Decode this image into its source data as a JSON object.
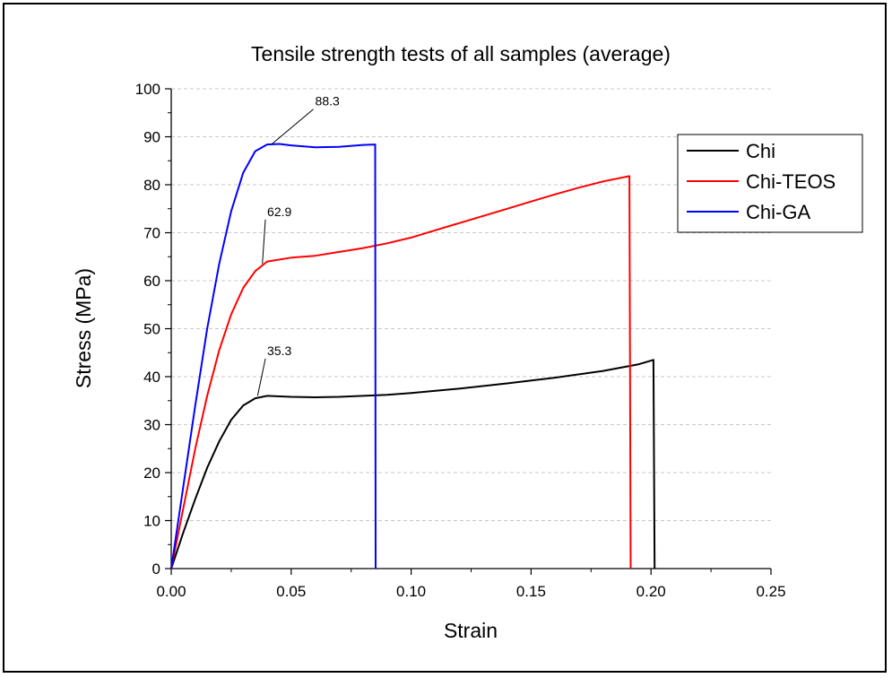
{
  "chart_data": {
    "type": "line",
    "title": "Tensile strength tests of all samples (average)",
    "xlabel": "Strain",
    "ylabel": "Stress (MPa)",
    "xlim": [
      0,
      0.25
    ],
    "ylim": [
      0,
      100
    ],
    "x_ticks": [
      "0.00",
      "0.05",
      "0.10",
      "0.15",
      "0.20",
      "0.25"
    ],
    "x_tick_values": [
      0,
      0.05,
      0.1,
      0.15,
      0.2,
      0.25
    ],
    "y_ticks": [
      "0",
      "10",
      "20",
      "30",
      "40",
      "50",
      "60",
      "70",
      "80",
      "90",
      "100"
    ],
    "y_tick_values": [
      0,
      10,
      20,
      30,
      40,
      50,
      60,
      70,
      80,
      90,
      100
    ],
    "grid": "horizontal dashed",
    "legend_position": "top-right",
    "series": [
      {
        "name": "Chi",
        "color": "#000000",
        "points": [
          [
            0,
            0
          ],
          [
            0.005,
            7.5
          ],
          [
            0.01,
            14.5
          ],
          [
            0.015,
            21
          ],
          [
            0.02,
            26.5
          ],
          [
            0.025,
            31
          ],
          [
            0.03,
            34
          ],
          [
            0.035,
            35.5
          ],
          [
            0.04,
            36
          ],
          [
            0.05,
            35.8
          ],
          [
            0.06,
            35.7
          ],
          [
            0.07,
            35.8
          ],
          [
            0.08,
            36
          ],
          [
            0.09,
            36.2
          ],
          [
            0.1,
            36.6
          ],
          [
            0.12,
            37.5
          ],
          [
            0.14,
            38.6
          ],
          [
            0.16,
            39.8
          ],
          [
            0.18,
            41.2
          ],
          [
            0.195,
            42.6
          ],
          [
            0.201,
            43.5
          ],
          [
            0.2015,
            0
          ]
        ]
      },
      {
        "name": "Chi-TEOS",
        "color": "#ff0000",
        "points": [
          [
            0,
            0
          ],
          [
            0.005,
            12.5
          ],
          [
            0.01,
            25
          ],
          [
            0.015,
            36
          ],
          [
            0.02,
            45.5
          ],
          [
            0.025,
            53
          ],
          [
            0.03,
            58.5
          ],
          [
            0.035,
            62
          ],
          [
            0.04,
            64
          ],
          [
            0.05,
            64.8
          ],
          [
            0.06,
            65.2
          ],
          [
            0.07,
            66
          ],
          [
            0.08,
            66.8
          ],
          [
            0.09,
            67.8
          ],
          [
            0.1,
            69
          ],
          [
            0.11,
            70.5
          ],
          [
            0.12,
            72
          ],
          [
            0.13,
            73.5
          ],
          [
            0.14,
            75
          ],
          [
            0.15,
            76.5
          ],
          [
            0.16,
            78
          ],
          [
            0.17,
            79.4
          ],
          [
            0.18,
            80.7
          ],
          [
            0.191,
            81.8
          ],
          [
            0.1915,
            0
          ]
        ]
      },
      {
        "name": "Chi-GA",
        "color": "#0000ff",
        "points": [
          [
            0,
            0
          ],
          [
            0.005,
            17
          ],
          [
            0.01,
            34
          ],
          [
            0.015,
            50
          ],
          [
            0.02,
            63.5
          ],
          [
            0.025,
            74.5
          ],
          [
            0.03,
            82.5
          ],
          [
            0.035,
            87
          ],
          [
            0.04,
            88.4
          ],
          [
            0.045,
            88.5
          ],
          [
            0.05,
            88.2
          ],
          [
            0.06,
            87.8
          ],
          [
            0.07,
            87.9
          ],
          [
            0.08,
            88.3
          ],
          [
            0.085,
            88.4
          ],
          [
            0.0852,
            0
          ]
        ]
      }
    ],
    "annotations": [
      {
        "label": "88.3",
        "x": 0.042,
        "y": 88.5,
        "text_x": 0.06,
        "text_y": 96.5
      },
      {
        "label": "62.9",
        "x": 0.038,
        "y": 63.5,
        "text_x": 0.04,
        "text_y": 73.5
      },
      {
        "label": "35.3",
        "x": 0.036,
        "y": 36,
        "text_x": 0.04,
        "text_y": 44.5
      }
    ]
  }
}
